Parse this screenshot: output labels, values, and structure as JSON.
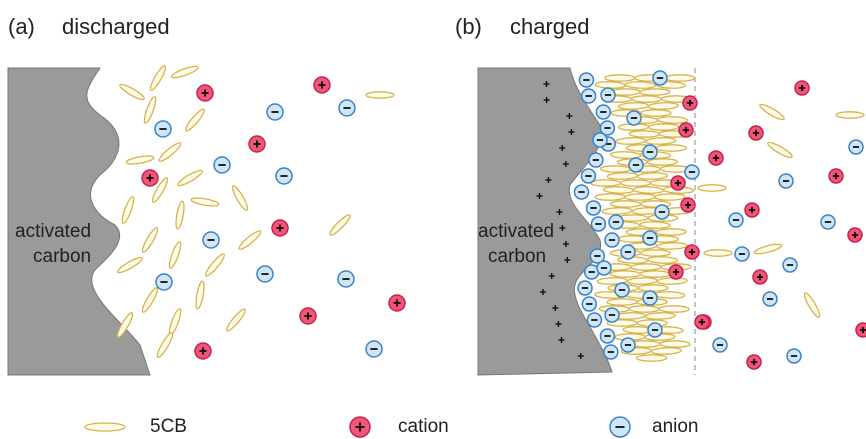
{
  "panels": [
    {
      "label": "(a)",
      "title": "discharged",
      "electrode_label": [
        "activated",
        "carbon"
      ]
    },
    {
      "label": "(b)",
      "title": "charged",
      "electrode_label": [
        "activated",
        "carbon"
      ]
    }
  ],
  "legend": [
    {
      "label": "5CB"
    },
    {
      "label": "cation"
    },
    {
      "label": "anion"
    }
  ]
}
